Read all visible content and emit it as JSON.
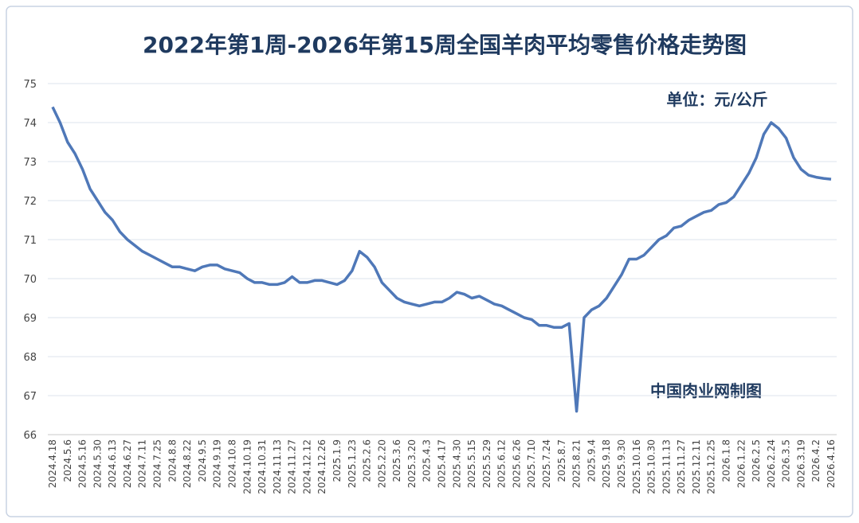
{
  "chart_data": {
    "type": "line",
    "title": "2022年第1周-2026年第15周全国羊肉平均零售价格走势图",
    "annotations": [
      "单位：元/公斤",
      "中国肉业网制图"
    ],
    "color": "#4f78b8",
    "grid": true,
    "ylim": [
      66,
      75
    ],
    "yticks": [
      66,
      67,
      68,
      69,
      70,
      71,
      72,
      73,
      74,
      75
    ],
    "categories": [
      "2024.4.18",
      null,
      "2024.5.6",
      null,
      "2024.5.16",
      null,
      "2024.5.30",
      null,
      "2024.6.13",
      null,
      "2024.6.27",
      null,
      "2024.7.11",
      null,
      "2024.7.25",
      null,
      "2024.8.8",
      null,
      "2024.8.22",
      null,
      "2024.9.5",
      null,
      "2024.9.19",
      null,
      "2024.10.8",
      null,
      "2024.10.19",
      null,
      "2024.10.31",
      null,
      "2024.11.13",
      null,
      "2024.11.27",
      null,
      "2024.12.12",
      null,
      "2024.12.26",
      null,
      "2025.1.9",
      null,
      "2025.1.23",
      null,
      "2025.2.6",
      null,
      "2025.2.20",
      null,
      "2025.3.6",
      null,
      "2025.3.20",
      null,
      "2025.4.3",
      null,
      "2025.4.17",
      null,
      "2025.4.30",
      null,
      "2025.5.15",
      null,
      "2025.5.29",
      null,
      "2025.6.12",
      null,
      "2025.6.26",
      null,
      "2025.7.10",
      null,
      "2025.7.24",
      null,
      "2025.8.7",
      null,
      "2025.8.21",
      null,
      "2025.9.4",
      null,
      "2025.9.18",
      null,
      "2025.9.30",
      null,
      "2025.10.16",
      null,
      "2025.10.30",
      null,
      "2025.11.13",
      null,
      "2025.11.27",
      null,
      "2025.12.11",
      null,
      "2025.12.25",
      null,
      "2026.1.8",
      null,
      "2026.1.22",
      null,
      "2026.2.5",
      null,
      "2026.2.24",
      null,
      "2026.3.5",
      null,
      "2026.3.19",
      null,
      "2026.4.2",
      null,
      "2026.4.16"
    ],
    "values": [
      74.4,
      74.0,
      73.5,
      73.2,
      72.8,
      72.3,
      72.0,
      71.7,
      71.5,
      71.2,
      71.0,
      70.85,
      70.7,
      70.6,
      70.5,
      70.4,
      70.3,
      70.3,
      70.25,
      70.2,
      70.3,
      70.35,
      70.35,
      70.25,
      70.2,
      70.15,
      70.0,
      69.9,
      69.9,
      69.85,
      69.85,
      69.9,
      70.05,
      69.9,
      69.9,
      69.95,
      69.95,
      69.9,
      69.85,
      69.95,
      70.2,
      70.7,
      70.55,
      70.3,
      69.9,
      69.7,
      69.5,
      69.4,
      69.35,
      69.3,
      69.35,
      69.4,
      69.4,
      69.5,
      69.65,
      69.6,
      69.5,
      69.55,
      69.45,
      69.35,
      69.3,
      69.2,
      69.1,
      69.0,
      68.95,
      68.8,
      68.8,
      68.75,
      68.75,
      68.85,
      66.6,
      69.0,
      69.2,
      69.3,
      69.5,
      69.8,
      70.1,
      70.5,
      70.5,
      70.6,
      70.8,
      71.0,
      71.1,
      71.3,
      71.35,
      71.5,
      71.6,
      71.7,
      71.75,
      71.9,
      71.95,
      72.1,
      72.4,
      72.7,
      73.1,
      73.7,
      74.0,
      73.85,
      73.6,
      73.1,
      72.8,
      72.65,
      72.6,
      72.57,
      72.55
    ]
  }
}
